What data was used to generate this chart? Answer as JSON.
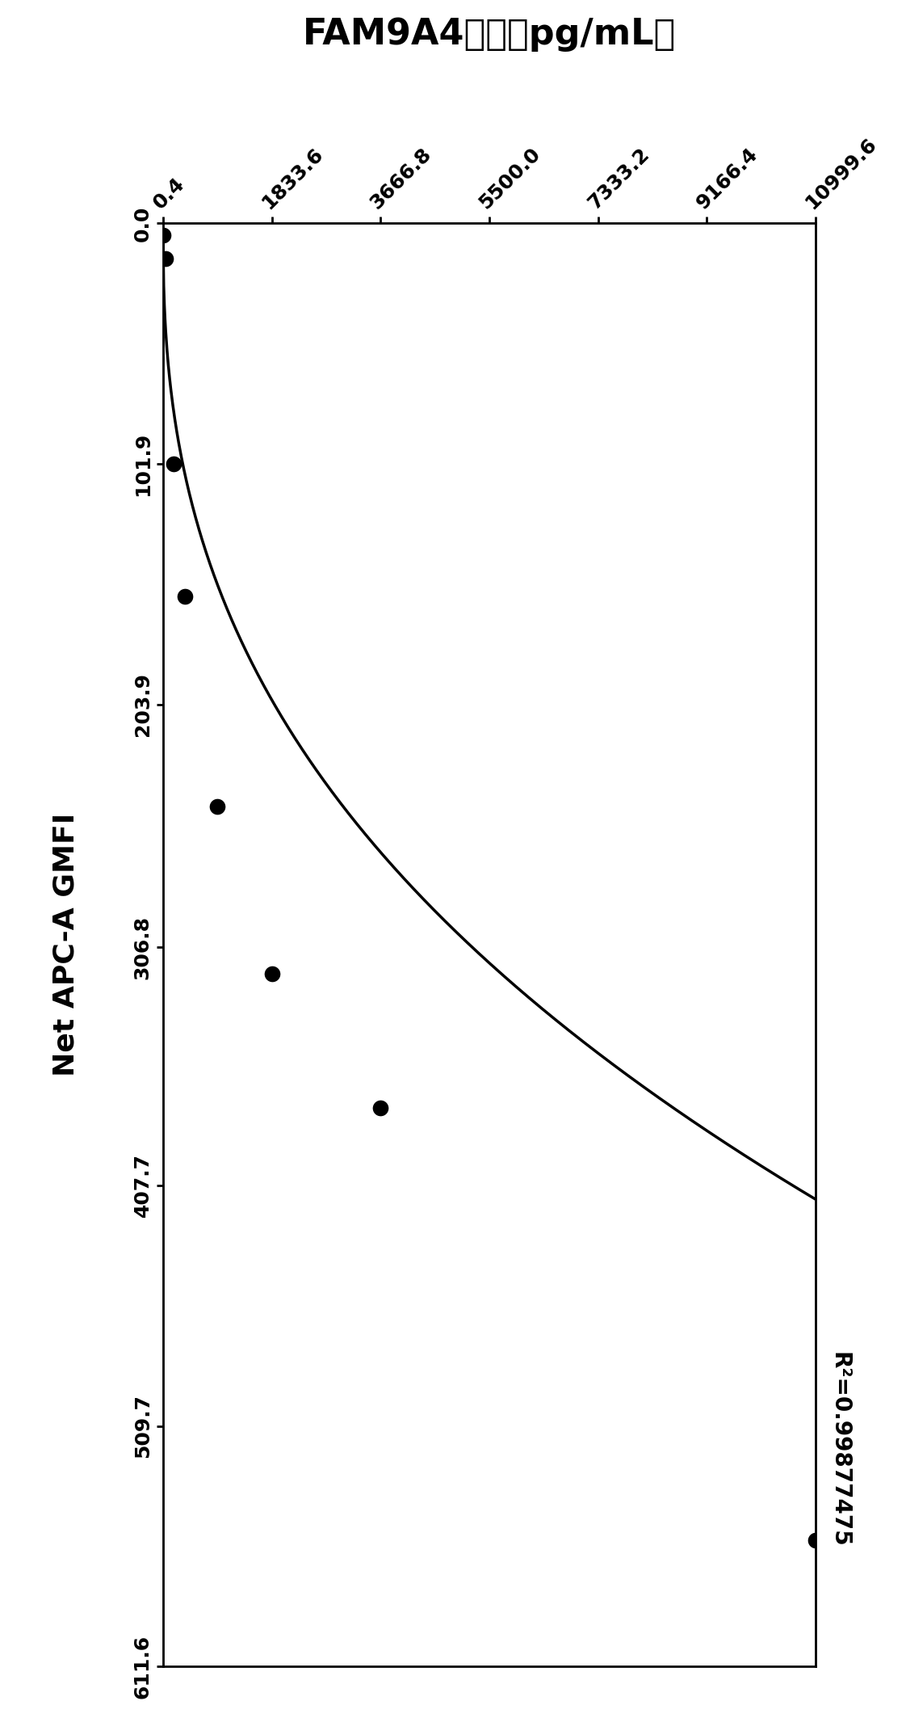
{
  "title": "FAM9A4浓度（pg/mL）",
  "ylabel": "Net APC-A GMFI",
  "r_squared": "R²=0.99877475",
  "x_ticks": [
    0.4,
    1833.6,
    3666.8,
    5500.0,
    7333.2,
    9166.4,
    10999.6
  ],
  "y_ticks": [
    0.0,
    101.9,
    203.9,
    306.8,
    407.7,
    509.7,
    611.6
  ],
  "x_pts": [
    0.4,
    36.66,
    183.38,
    366.6,
    916.6,
    1833.6,
    3666.8,
    10999.6
  ],
  "y_pts": [
    5.0,
    15.0,
    101.9,
    158.0,
    247.0,
    318.0,
    375.0,
    558.0
  ],
  "xlim": [
    0.4,
    10999.6
  ],
  "ylim": [
    0.0,
    611.6
  ],
  "scatter_color": "#000000",
  "line_color": "#000000",
  "bg_color": "#ffffff",
  "title_fontsize": 32,
  "ylabel_fontsize": 26,
  "tick_fontsize": 18,
  "annot_fontsize": 20
}
